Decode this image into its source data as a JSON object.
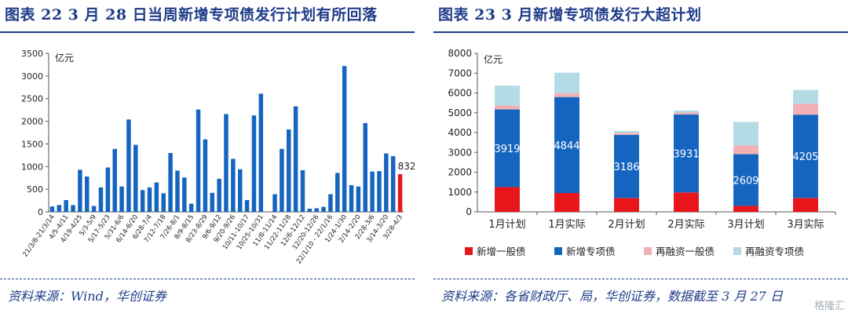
{
  "left": {
    "title": "图表 22   3 月 28 日当周新增专项债发行计划有所回落",
    "source": "资料来源：Wind，华创证券",
    "chart_data": {
      "type": "bar",
      "ylabel": "亿元",
      "ylim": [
        0,
        3500
      ],
      "yticks": [
        0,
        500,
        1000,
        1500,
        2000,
        2500,
        3000,
        3500
      ],
      "bar_color": "#1565c0",
      "highlight_color": "#e8151b",
      "last_value_label": "832",
      "values": [
        120,
        150,
        260,
        150,
        930,
        780,
        130,
        540,
        980,
        1390,
        560,
        2040,
        1480,
        480,
        540,
        650,
        410,
        1300,
        910,
        760,
        180,
        2260,
        1600,
        420,
        730,
        2160,
        1170,
        940,
        260,
        2130,
        2610,
        0,
        390,
        1390,
        1820,
        2330,
        920,
        70,
        80,
        110,
        390,
        860,
        3220,
        590,
        560,
        1960,
        890,
        900,
        1290,
        1230,
        832
      ],
      "x_tick_labels": [
        "21/3/8-21/3/14",
        "4/5-4/11",
        "4/19-4/25",
        "5/3-5/9",
        "5/17-5/23",
        "5/31-6/6",
        "6/14-6/20",
        "6/28-7/4",
        "7/12-7/18",
        "7/26-8/1",
        "8/9-8/15",
        "8/23-8/29",
        "9/6-9/12",
        "9/20-9/26",
        "10/11-10/17",
        "10/25-10/31",
        "11/8-11/14",
        "11/22-11/28",
        "12/6-12/12",
        "12/20-12/26",
        "22/1/10 - 22/1/16",
        "1/24-1/30",
        "2/14-2/20",
        "2/28-3/6",
        "3/14-3/20",
        "3/28-4/3"
      ]
    }
  },
  "right": {
    "title": "图表 23   3 月新增专项债发行大超计划",
    "source": "资料来源：各省财政厅、局，华创证券，数据截至 3 月 27 日",
    "watermark": "格隆汇",
    "chart_data": {
      "type": "bar",
      "stacked": true,
      "ylabel": "亿元",
      "ylim": [
        0,
        8000
      ],
      "yticks": [
        0,
        1000,
        2000,
        3000,
        4000,
        5000,
        6000,
        7000,
        8000
      ],
      "categories": [
        "1月计划",
        "1月实际",
        "2月计划",
        "2月实际",
        "3月计划",
        "3月实际"
      ],
      "series": [
        {
          "name": "新增一般债",
          "color": "#e8151b",
          "values": [
            1250,
            950,
            700,
            980,
            300,
            700
          ]
        },
        {
          "name": "新增专项债",
          "color": "#1565c0",
          "values": [
            3919,
            4844,
            3186,
            3931,
            2609,
            4205
          ]
        },
        {
          "name": "再融资一般债",
          "color": "#f0b0b4",
          "values": [
            200,
            200,
            100,
            100,
            450,
            550
          ]
        },
        {
          "name": "再融资专项债",
          "color": "#b3dbe6",
          "values": [
            1000,
            1030,
            100,
            100,
            1180,
            700
          ]
        }
      ],
      "data_labels": [
        "3919",
        "4844",
        "3186",
        "3931",
        "2609",
        "4205"
      ],
      "legend_position": "bottom"
    }
  }
}
